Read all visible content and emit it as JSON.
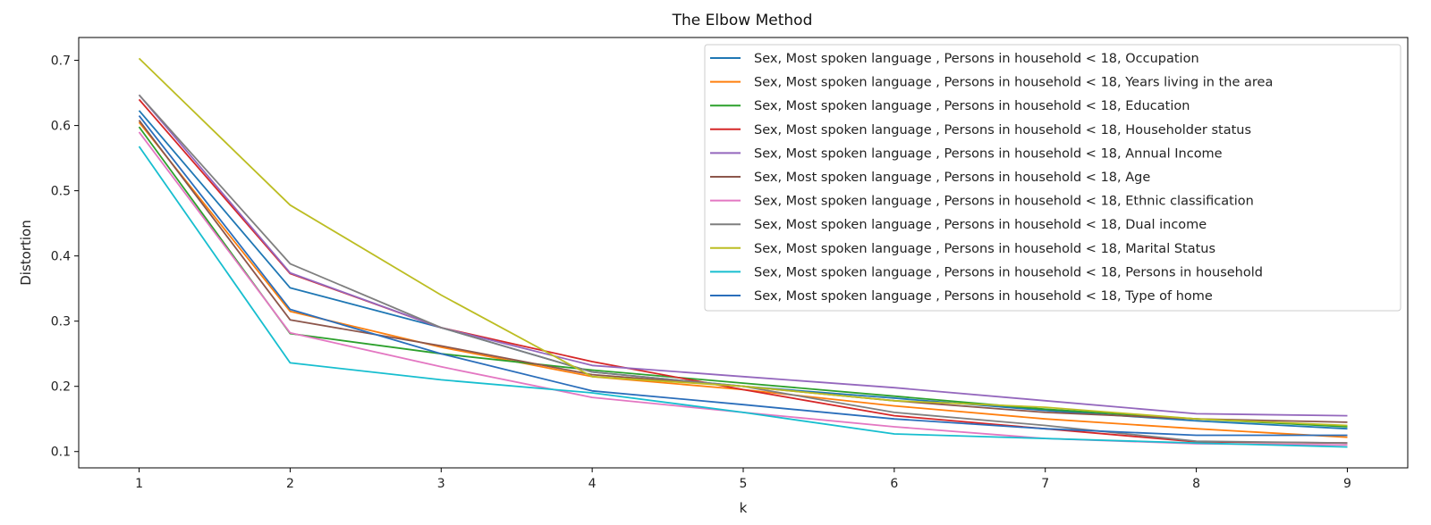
{
  "chart_data": {
    "type": "line",
    "title": "The Elbow Method",
    "xlabel": "k",
    "ylabel": "Distortion",
    "x": [
      1,
      2,
      3,
      4,
      5,
      6,
      7,
      8,
      9
    ],
    "xlim": [
      0.6,
      9.4
    ],
    "ylim": [
      0.075,
      0.735
    ],
    "yticks": [
      0.1,
      0.2,
      0.3,
      0.4,
      0.5,
      0.6,
      0.7
    ],
    "xticks": [
      1,
      2,
      3,
      4,
      5,
      6,
      7,
      8,
      9
    ],
    "legend_position": "top-right",
    "grid": false,
    "series": [
      {
        "name": "Sex, Most spoken language , Persons in household < 18, Occupation",
        "color": "#1f77b4",
        "values": [
          0.623,
          0.351,
          0.29,
          0.222,
          0.2,
          0.182,
          0.163,
          0.147,
          0.135
        ]
      },
      {
        "name": "Sex, Most spoken language , Persons in household < 18, Years living in the area",
        "color": "#ff7f0e",
        "values": [
          0.605,
          0.315,
          0.26,
          0.215,
          0.195,
          0.17,
          0.15,
          0.135,
          0.122
        ]
      },
      {
        "name": "Sex, Most spoken language , Persons in household < 18, Education",
        "color": "#2ca02c",
        "values": [
          0.598,
          0.281,
          0.25,
          0.225,
          0.205,
          0.185,
          0.165,
          0.15,
          0.138
        ]
      },
      {
        "name": "Sex, Most spoken language , Persons in household < 18, Householder status",
        "color": "#d62728",
        "values": [
          0.64,
          0.373,
          0.29,
          0.238,
          0.195,
          0.155,
          0.135,
          0.115,
          0.113
        ]
      },
      {
        "name": "Sex, Most spoken language , Persons in household < 18, Annual Income",
        "color": "#9467bd",
        "values": [
          0.647,
          0.374,
          0.29,
          0.232,
          0.215,
          0.198,
          0.178,
          0.158,
          0.155
        ]
      },
      {
        "name": "Sex, Most spoken language , Persons in household < 18, Age",
        "color": "#8c564b",
        "values": [
          0.608,
          0.302,
          0.262,
          0.218,
          0.2,
          0.178,
          0.16,
          0.15,
          0.145
        ]
      },
      {
        "name": "Sex, Most spoken language , Persons in household < 18, Ethnic classification",
        "color": "#e377c2",
        "values": [
          0.59,
          0.282,
          0.23,
          0.183,
          0.16,
          0.138,
          0.12,
          0.112,
          0.11
        ]
      },
      {
        "name": "Sex, Most spoken language , Persons in household < 18, Dual income",
        "color": "#7f7f7f",
        "values": [
          0.647,
          0.388,
          0.29,
          0.222,
          0.2,
          0.16,
          0.14,
          0.116,
          0.113
        ]
      },
      {
        "name": "Sex, Most spoken language , Persons in household < 18, Marital Status",
        "color": "#bcbd22",
        "values": [
          0.703,
          0.478,
          0.34,
          0.215,
          0.2,
          0.178,
          0.168,
          0.15,
          0.14
        ]
      },
      {
        "name": "Sex, Most spoken language , Persons in household < 18, Persons in household",
        "color": "#17becf",
        "values": [
          0.568,
          0.236,
          0.21,
          0.19,
          0.16,
          0.127,
          0.12,
          0.113,
          0.107
        ]
      },
      {
        "name": "Sex, Most spoken language , Persons in household < 18, Type of home",
        "color": "#2a6ebb",
        "values": [
          0.615,
          0.318,
          0.25,
          0.193,
          0.172,
          0.15,
          0.135,
          0.125,
          0.125
        ]
      }
    ]
  }
}
